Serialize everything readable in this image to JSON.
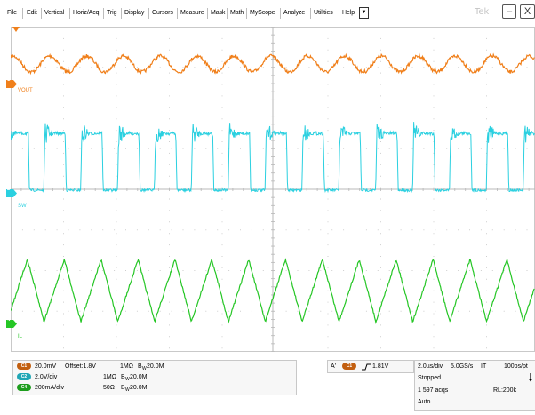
{
  "menu": {
    "items": [
      "File",
      "Edit",
      "Vertical",
      "Horiz/Acq",
      "Trig",
      "Display",
      "Cursors",
      "Measure",
      "Mask",
      "Math",
      "MyScope",
      "Analyze",
      "Utilities",
      "Help"
    ],
    "dropdown_icon": "triangle-down-icon",
    "brand": "Tek",
    "minimize_icon": "minimize-icon",
    "close_label": "X"
  },
  "channels": [
    {
      "id": "1",
      "name": "VOUT",
      "color": "#f07f1a",
      "badge": "C1",
      "scale": "20.0mV",
      "offset": "Offset:1.8V",
      "impedance": "1MΩ",
      "bandwidth": "20.0M"
    },
    {
      "id": "2",
      "name": "SW",
      "color": "#2ad0e0",
      "badge": "C2",
      "scale": "2.0V/div",
      "offset": "",
      "impedance": "1MΩ",
      "bandwidth": "20.0M"
    },
    {
      "id": "4",
      "name": "IL",
      "color": "#25c625",
      "badge": "C4",
      "scale": "200mA/div",
      "offset": "",
      "impedance": "50Ω",
      "bandwidth": "20.0M"
    }
  ],
  "bw_prefix": "B",
  "bw_sub": "W",
  "trigger": {
    "mode": "A'",
    "source_badge": "C1",
    "slope_icon": "rising-edge-icon",
    "level": "1.81V"
  },
  "horizontal": {
    "timebase": "2.0µs/div",
    "sample_rate": "5.0GS/s",
    "mode": "IT",
    "resolution": "100ps/pt",
    "state": "Stopped",
    "acqs": "1 597 acqs",
    "record_length": "RL:200k",
    "trigger_mode": "Auto",
    "arrow_icon": "down-arrow-icon"
  },
  "colors": {
    "grid": "#c9c9c9",
    "trigger_marker": "#f07f1a"
  }
}
